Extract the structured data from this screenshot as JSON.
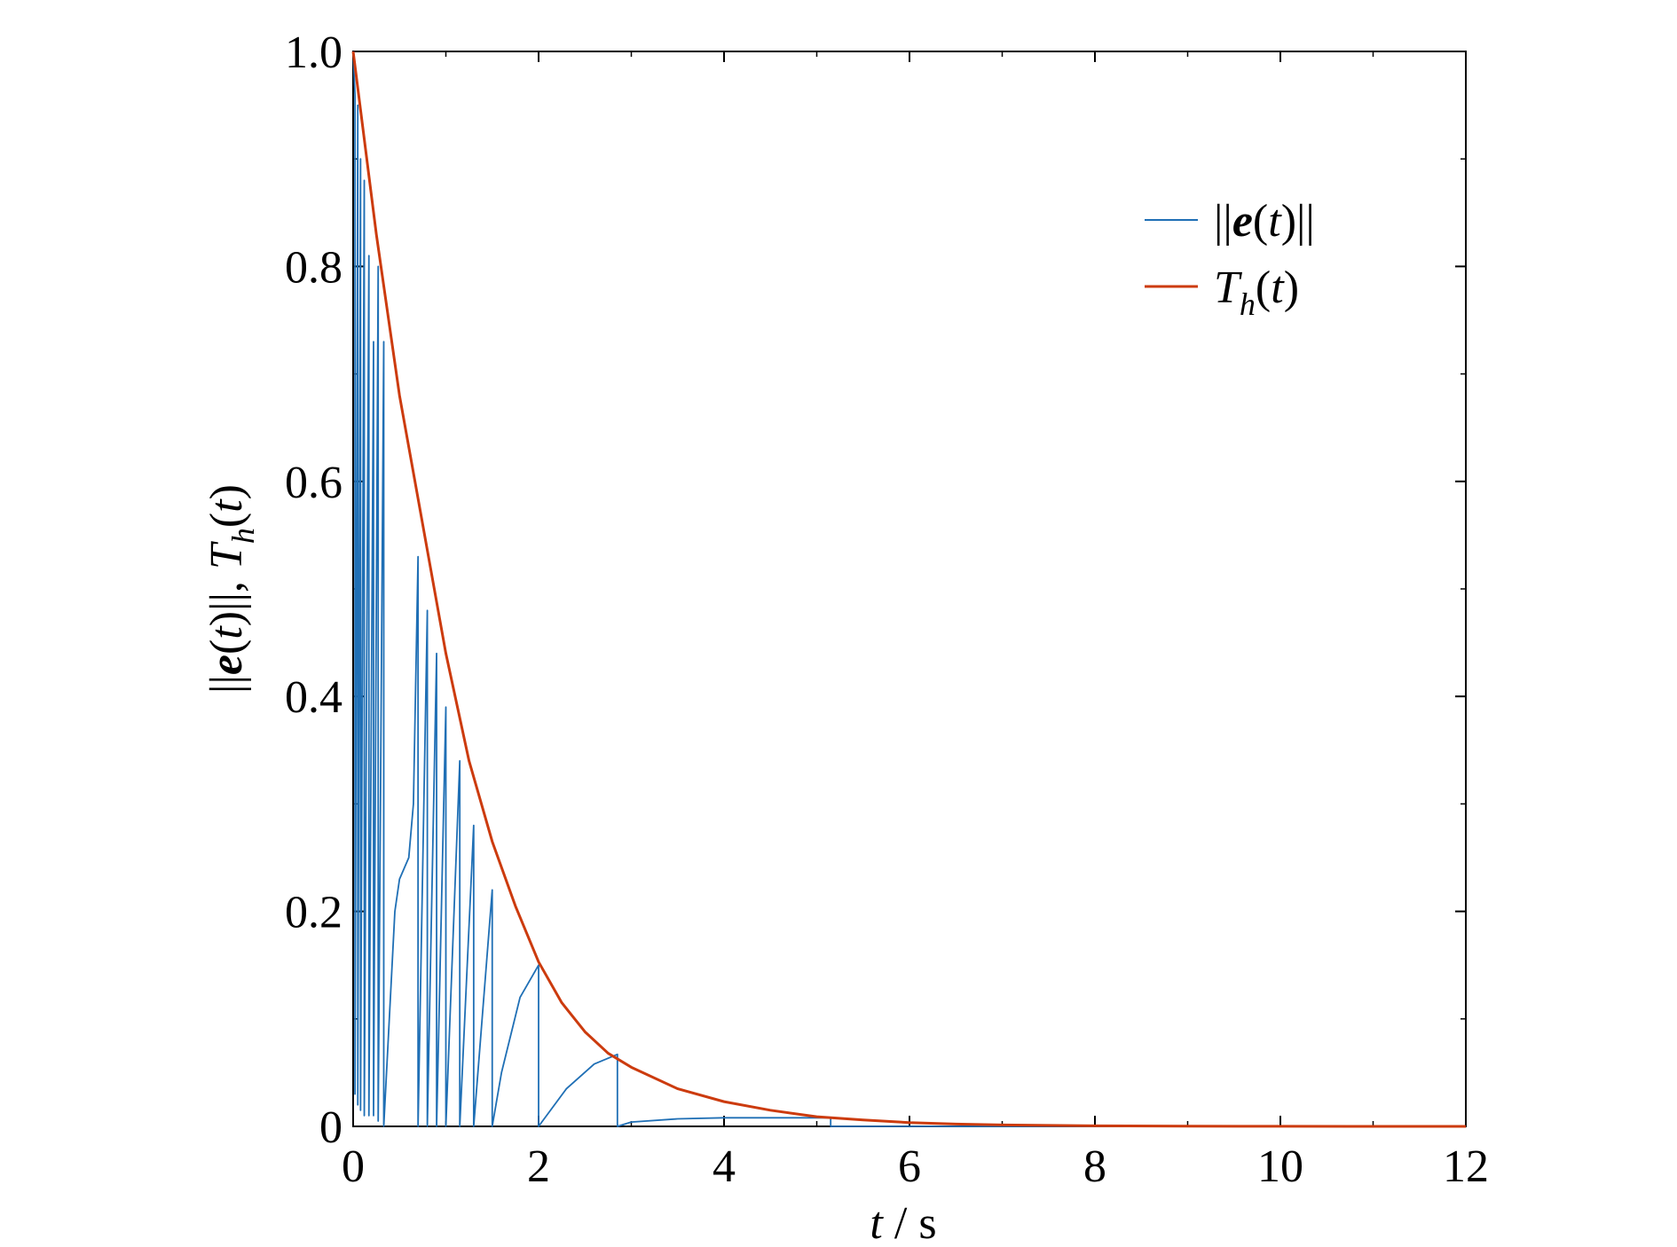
{
  "chart_data": {
    "type": "line",
    "title": "",
    "xlabel": "t / s",
    "ylabel": "||e(t)||, T_h(t)",
    "xlim": [
      0,
      12
    ],
    "ylim": [
      0,
      1.0
    ],
    "x_ticks": [
      0,
      2,
      4,
      6,
      8,
      10,
      12
    ],
    "x_tick_labels": [
      "0",
      "2",
      "4",
      "6",
      "8",
      "10",
      "12"
    ],
    "y_ticks": [
      0,
      0.2,
      0.4,
      0.6,
      0.8,
      1.0
    ],
    "y_tick_labels": [
      "0",
      "0.2",
      "0.4",
      "0.6",
      "0.8",
      "1.0"
    ],
    "grid": false,
    "legend_position": "top-right",
    "series": [
      {
        "name": "||e(t)||",
        "color": "#1f6fb5",
        "x": [
          0,
          0.02,
          0.02,
          0.05,
          0.05,
          0.08,
          0.08,
          0.12,
          0.12,
          0.17,
          0.17,
          0.22,
          0.22,
          0.27,
          0.27,
          0.33,
          0.33,
          0.45,
          0.5,
          0.55,
          0.6,
          0.65,
          0.7,
          0.7,
          0.8,
          0.8,
          0.9,
          0.9,
          1.0,
          1.0,
          1.15,
          1.15,
          1.3,
          1.3,
          1.5,
          1.5,
          1.6,
          1.8,
          2.0,
          2.0,
          2.3,
          2.6,
          2.85,
          2.85,
          3.0,
          3.5,
          4.0,
          5.0,
          5.15,
          5.15,
          8.0,
          12.0
        ],
        "y": [
          1.0,
          0.96,
          0.03,
          0.95,
          0.02,
          0.9,
          0.015,
          0.88,
          0.01,
          0.81,
          0.01,
          0.73,
          0.01,
          0.8,
          0.005,
          0.73,
          0.0,
          0.2,
          0.23,
          0.24,
          0.25,
          0.3,
          0.53,
          0.0,
          0.48,
          0.0,
          0.44,
          0.0,
          0.39,
          0.0,
          0.34,
          0.0,
          0.28,
          0.0,
          0.22,
          0.0,
          0.05,
          0.12,
          0.15,
          0.0,
          0.035,
          0.058,
          0.067,
          0.0,
          0.004,
          0.007,
          0.008,
          0.008,
          0.008,
          0.0,
          0.0,
          0.0
        ]
      },
      {
        "name": "T_h(t)",
        "color": "#cc3b0e",
        "x": [
          0,
          0.25,
          0.5,
          0.75,
          1.0,
          1.25,
          1.5,
          1.75,
          2.0,
          2.25,
          2.5,
          2.75,
          3.0,
          3.5,
          4.0,
          4.5,
          5.0,
          5.5,
          6.0,
          6.5,
          7.0,
          8.0,
          9.0,
          10.0,
          11.0,
          12.0
        ],
        "y": [
          1.0,
          0.83,
          0.68,
          0.56,
          0.44,
          0.34,
          0.265,
          0.205,
          0.153,
          0.115,
          0.088,
          0.068,
          0.055,
          0.035,
          0.023,
          0.015,
          0.009,
          0.006,
          0.0035,
          0.0022,
          0.0013,
          0.0005,
          0.0002,
          0.0001,
          0.0,
          0.0
        ]
      }
    ]
  },
  "legend": {
    "entries": [
      {
        "label": "||e(t)||"
      },
      {
        "label": "T_h(t)"
      }
    ]
  },
  "labels": {
    "x_axis": "t / s",
    "y_axis": "||e(t)||, T_h(t)"
  }
}
